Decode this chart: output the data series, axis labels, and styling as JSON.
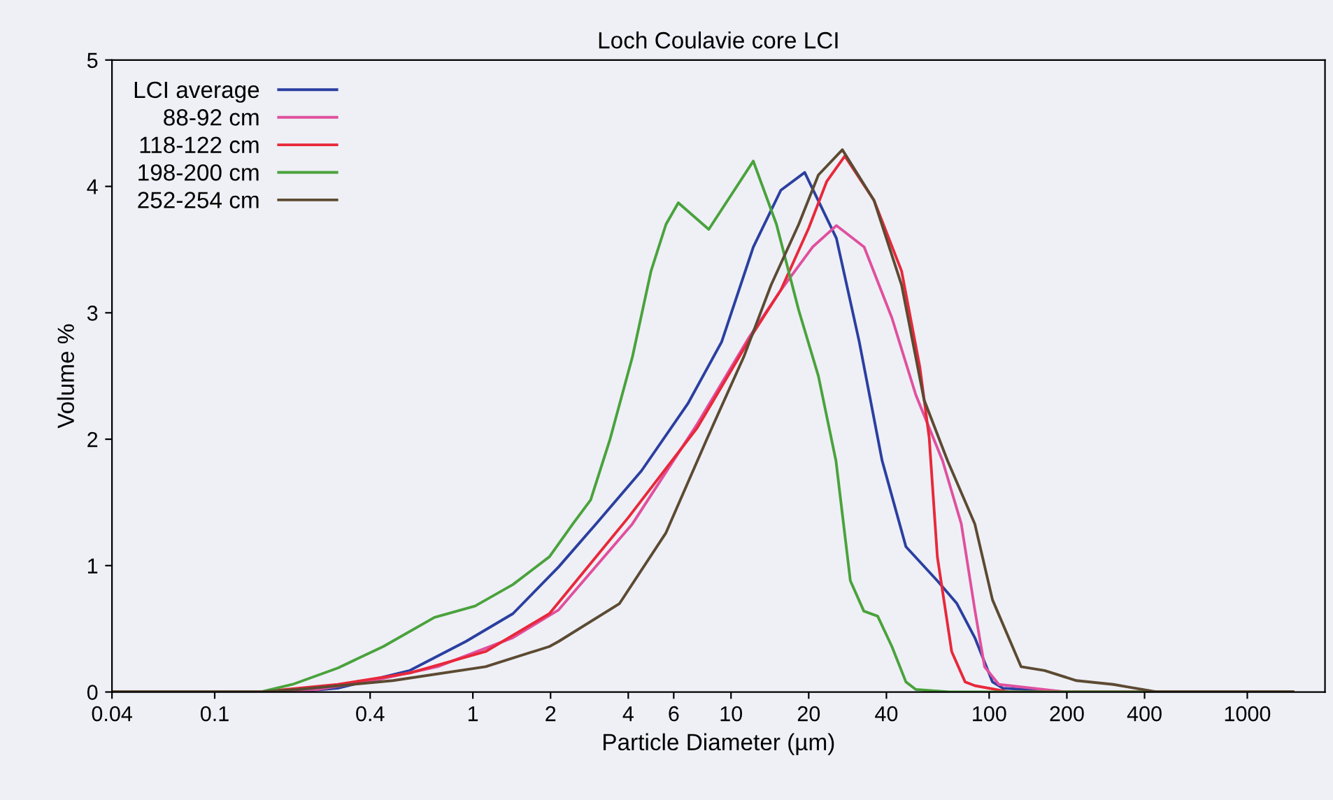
{
  "chart_data": {
    "type": "line",
    "title": "Loch Coulavie core LCI",
    "xlabel": "Particle Diameter (µm)",
    "ylabel": "Volume %",
    "log": "x",
    "xlim": [
      0.04,
      2000
    ],
    "ylim": [
      0,
      5
    ],
    "xticks": [
      0.04,
      0.1,
      0.4,
      1,
      2,
      4,
      6,
      10,
      20,
      40,
      100,
      200,
      400,
      1000
    ],
    "yticks": [
      0,
      1,
      2,
      3,
      4,
      5
    ],
    "grid": false,
    "legend": "top left",
    "line_style": "solid",
    "marker": "none",
    "series": [
      {
        "name": "LCI average",
        "color": "#2b3fa0",
        "x": [
          0.04,
          0.2,
          0.3,
          0.57,
          0.94,
          1.43,
          2.15,
          3.0,
          4.5,
          6.8,
          9.2,
          12.2,
          15.6,
          19.3,
          25.6,
          31.4,
          38.5,
          47.6,
          63,
          75,
          88,
          103,
          113,
          200,
          1500
        ],
        "values": [
          0,
          0,
          0.03,
          0.17,
          0.4,
          0.62,
          0.99,
          1.33,
          1.75,
          2.28,
          2.77,
          3.52,
          3.97,
          4.11,
          3.59,
          2.77,
          1.83,
          1.15,
          0.88,
          0.7,
          0.43,
          0.08,
          0.03,
          0,
          0
        ]
      },
      {
        "name": "88-92 cm",
        "color": "#e0509f",
        "x": [
          0.04,
          0.15,
          0.25,
          0.41,
          0.73,
          1.43,
          2.15,
          4.15,
          7.4,
          11.7,
          15.6,
          20.7,
          25.6,
          32.8,
          42,
          52,
          66,
          78,
          88,
          96,
          109,
          200,
          1500
        ],
        "values": [
          0,
          0,
          0.02,
          0.09,
          0.2,
          0.43,
          0.65,
          1.33,
          2.12,
          2.8,
          3.18,
          3.52,
          3.69,
          3.52,
          2.96,
          2.35,
          1.83,
          1.33,
          0.65,
          0.2,
          0.06,
          0,
          0
        ]
      },
      {
        "name": "118-122 cm",
        "color": "#e8283a",
        "x": [
          0.04,
          0.15,
          0.3,
          0.57,
          1.12,
          1.98,
          4.0,
          7.4,
          12.2,
          15.6,
          20,
          23.5,
          27.6,
          35.8,
          45.8,
          53.9,
          58.6,
          63,
          71.6,
          80.7,
          88,
          120,
          1500
        ],
        "values": [
          0,
          0,
          0.06,
          0.15,
          0.32,
          0.62,
          1.38,
          2.09,
          2.84,
          3.18,
          3.67,
          4.04,
          4.24,
          3.89,
          3.33,
          2.57,
          2.01,
          1.07,
          0.32,
          0.08,
          0.05,
          0,
          0
        ]
      },
      {
        "name": "198-200 cm",
        "color": "#4aa23c",
        "x": [
          0.04,
          0.15,
          0.2,
          0.3,
          0.45,
          0.71,
          1.02,
          1.43,
          1.98,
          2.44,
          2.86,
          3.4,
          4.15,
          4.9,
          5.6,
          6.25,
          8.2,
          12.2,
          15,
          18.3,
          21.8,
          25.5,
          29,
          32.7,
          37,
          42,
          47.6,
          52,
          70,
          1500
        ],
        "values": [
          0,
          0,
          0.06,
          0.19,
          0.36,
          0.59,
          0.68,
          0.85,
          1.07,
          1.33,
          1.52,
          2.0,
          2.65,
          3.33,
          3.7,
          3.87,
          3.66,
          4.2,
          3.7,
          3.02,
          2.5,
          1.83,
          0.88,
          0.64,
          0.6,
          0.36,
          0.08,
          0.02,
          0,
          0
        ]
      },
      {
        "name": "252-254 cm",
        "color": "#5c4a32",
        "x": [
          0.04,
          0.15,
          0.21,
          0.49,
          1.12,
          1.98,
          2.15,
          3.7,
          5.6,
          8.1,
          11.2,
          14.3,
          18.3,
          21.8,
          27,
          35.8,
          45.8,
          56,
          69,
          88,
          103,
          133,
          164,
          218,
          303,
          345,
          450,
          1500
        ],
        "values": [
          0,
          0,
          0.02,
          0.09,
          0.2,
          0.36,
          0.4,
          0.7,
          1.26,
          2.01,
          2.65,
          3.22,
          3.7,
          4.09,
          4.29,
          3.89,
          3.22,
          2.31,
          1.83,
          1.33,
          0.73,
          0.2,
          0.17,
          0.09,
          0.06,
          0.04,
          0,
          0
        ]
      }
    ]
  }
}
